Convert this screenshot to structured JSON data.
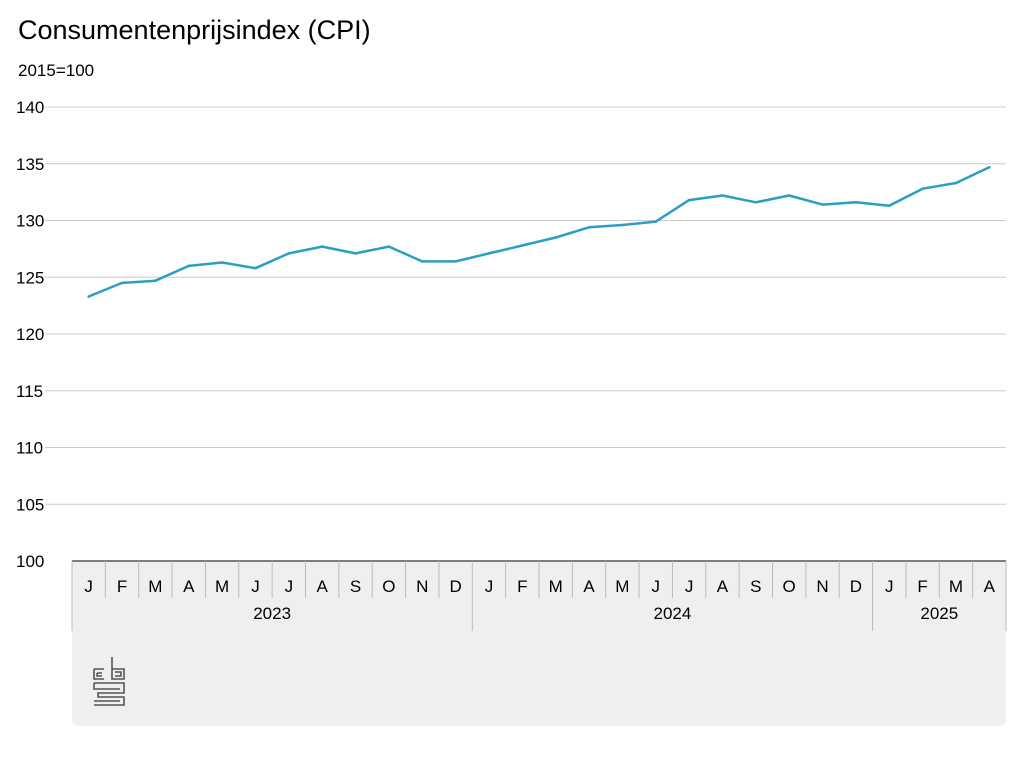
{
  "title": "Consumentenprijsindex (CPI)",
  "subtitle": "2015=100",
  "colors": {
    "line": "#2a9fc3",
    "grid": "#cccccc",
    "axis_panel": "#efefef",
    "axis_line": "#555555",
    "separator": "#bbbbbb"
  },
  "chart_data": {
    "type": "line",
    "title": "Consumentenprijsindex (CPI)",
    "ylabel": "2015=100",
    "ylim": [
      100,
      140
    ],
    "yticks": [
      100,
      105,
      110,
      115,
      120,
      125,
      130,
      135,
      140
    ],
    "grid": true,
    "months": [
      "J",
      "F",
      "M",
      "A",
      "M",
      "J",
      "J",
      "A",
      "S",
      "O",
      "N",
      "D",
      "J",
      "F",
      "M",
      "A",
      "M",
      "J",
      "J",
      "A",
      "S",
      "O",
      "N",
      "D",
      "J",
      "F",
      "M",
      "A"
    ],
    "years": [
      {
        "label": "2023",
        "start": 0,
        "count": 12
      },
      {
        "label": "2024",
        "start": 12,
        "count": 12
      },
      {
        "label": "2025",
        "start": 24,
        "count": 4
      }
    ],
    "series": [
      {
        "values": [
          123.3,
          124.5,
          124.7,
          126.0,
          126.3,
          125.8,
          127.1,
          127.7,
          127.1,
          127.7,
          126.4,
          126.4,
          127.1,
          127.8,
          128.5,
          129.4,
          129.6,
          129.9,
          131.8,
          132.2,
          131.6,
          132.2,
          131.4,
          131.6,
          131.3,
          132.8,
          133.3,
          134.7
        ]
      }
    ]
  }
}
